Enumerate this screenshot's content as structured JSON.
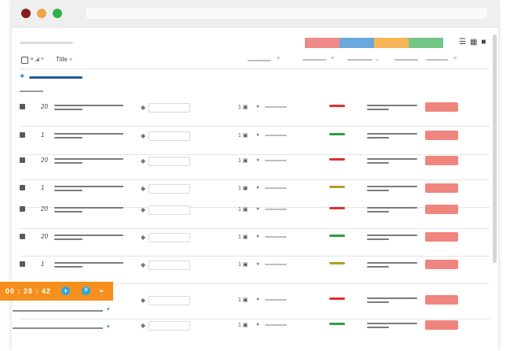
{
  "header": {
    "title_label": "Title"
  },
  "legend_colors": [
    "#ee8a85",
    "#6aa7dd",
    "#f7b656",
    "#72c584"
  ],
  "timer": {
    "time": "00 : 28 : 42",
    "add_symbol": "+",
    "pause_symbol": "II",
    "chevron": "⌄"
  },
  "rows": [
    {
      "num": "20",
      "comments": "1",
      "status_color": "#e0302a"
    },
    {
      "num": "1",
      "comments": "1",
      "status_color": "#2e9e3e"
    },
    {
      "num": "20",
      "comments": "1",
      "status_color": "#e0302a"
    },
    {
      "num": "1",
      "comments": "1",
      "status_color": "#b79a27"
    },
    {
      "num": "20",
      "comments": "1",
      "status_color": "#e0302a"
    },
    {
      "num": "20",
      "comments": "1",
      "status_color": "#2e9e3e"
    },
    {
      "num": "1",
      "comments": "1",
      "status_color": "#b79a27"
    },
    {
      "num": "",
      "comments": "1",
      "status_color": "#e0302a"
    },
    {
      "num": "",
      "comments": "1",
      "status_color": "#2e9e3e"
    }
  ]
}
